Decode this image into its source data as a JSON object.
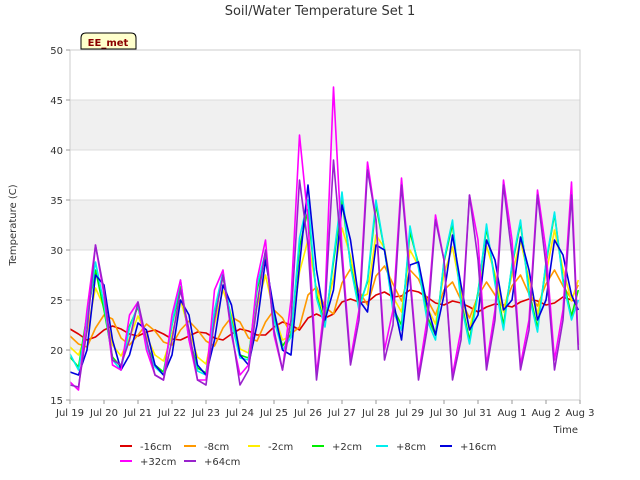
{
  "chart_data": {
    "type": "line",
    "title": "Soil/Water Temperature Set 1",
    "xlabel": "Time",
    "ylabel": "Temperature (C)",
    "badge": "EE_met",
    "ylim": [
      15,
      50
    ],
    "yticks": [
      15,
      20,
      25,
      30,
      35,
      40,
      45,
      50
    ],
    "xlim": [
      "2024-07-19",
      "2024-08-03"
    ],
    "xticks": [
      "Jul 19",
      "Jul 20",
      "Jul 21",
      "Jul 22",
      "Jul 23",
      "Jul 24",
      "Jul 25",
      "Jul 26",
      "Jul 27",
      "Jul 28",
      "Jul 29",
      "Jul 30",
      "Jul 31",
      "Aug 1",
      "Aug 2",
      "Aug 3"
    ],
    "grid": true,
    "shaded_bands": [
      [
        20,
        25
      ],
      [
        30,
        35
      ],
      [
        40,
        45
      ]
    ],
    "legend_position": "bottom",
    "series": [
      {
        "name": "-16cm",
        "color": "#dd0000",
        "days": [
          0.0,
          0.25,
          0.5,
          0.75,
          1.0,
          1.25,
          1.5,
          1.75,
          2.0,
          2.25,
          2.5,
          2.75,
          3.0,
          3.25,
          3.5,
          3.75,
          4.0,
          4.25,
          4.5,
          4.75,
          5.0,
          5.25,
          5.5,
          5.75,
          6.0,
          6.25,
          6.5,
          6.75,
          7.0,
          7.25,
          7.5,
          7.75,
          8.0,
          8.25,
          8.5,
          8.75,
          9.0,
          9.25,
          9.5,
          9.75,
          10.0,
          10.25,
          10.5,
          10.75,
          11.0,
          11.25,
          11.5,
          11.75,
          12.0,
          12.25,
          12.5,
          12.75,
          13.0,
          13.25,
          13.5,
          13.75,
          14.0,
          14.25,
          14.5,
          14.75,
          14.95
        ],
        "values": [
          22.1,
          21.6,
          21.0,
          21.3,
          22.0,
          22.4,
          22.1,
          21.6,
          21.4,
          21.8,
          22.0,
          21.6,
          21.1,
          21.0,
          21.4,
          21.8,
          21.7,
          21.2,
          21.0,
          21.6,
          22.1,
          21.9,
          21.5,
          21.5,
          22.3,
          22.8,
          22.5,
          22.0,
          23.2,
          23.6,
          23.2,
          23.6,
          24.8,
          25.1,
          24.8,
          24.8,
          25.5,
          25.8,
          25.3,
          25.4,
          26.0,
          25.8,
          25.3,
          24.7,
          24.5,
          24.9,
          24.7,
          24.3,
          23.8,
          24.3,
          24.6,
          24.5,
          24.3,
          24.8,
          25.1,
          24.9,
          24.5,
          24.7,
          25.3,
          25.0,
          24.8
        ]
      },
      {
        "name": "-8cm",
        "color": "#ff9900",
        "days": [
          0.0,
          0.25,
          0.5,
          0.75,
          1.0,
          1.25,
          1.5,
          1.75,
          2.0,
          2.25,
          2.5,
          2.75,
          3.0,
          3.25,
          3.5,
          3.75,
          4.0,
          4.25,
          4.5,
          4.75,
          5.0,
          5.25,
          5.5,
          5.75,
          6.0,
          6.25,
          6.5,
          6.75,
          7.0,
          7.25,
          7.5,
          7.75,
          8.0,
          8.25,
          8.5,
          8.75,
          9.0,
          9.25,
          9.5,
          9.75,
          10.0,
          10.25,
          10.5,
          10.75,
          11.0,
          11.25,
          11.5,
          11.75,
          12.0,
          12.25,
          12.5,
          12.75,
          13.0,
          13.25,
          13.5,
          13.75,
          14.0,
          14.25,
          14.5,
          14.75,
          14.95
        ],
        "values": [
          21.4,
          20.6,
          20.3,
          22.2,
          23.5,
          23.1,
          21.2,
          20.5,
          21.5,
          22.6,
          21.9,
          20.8,
          20.5,
          22.0,
          22.9,
          22.0,
          20.9,
          20.4,
          22.2,
          23.3,
          22.8,
          21.2,
          20.9,
          22.8,
          24.0,
          23.2,
          21.6,
          22.3,
          25.5,
          26.3,
          24.3,
          23.6,
          26.7,
          28.1,
          25.9,
          24.5,
          27.4,
          28.4,
          26.6,
          24.9,
          28.0,
          27.1,
          25.1,
          23.5,
          26.0,
          26.8,
          25.0,
          23.2,
          25.4,
          26.8,
          25.5,
          24.2,
          26.4,
          27.5,
          25.6,
          24.4,
          26.6,
          28.0,
          26.4,
          25.1,
          26.5
        ]
      },
      {
        "name": "-2cm",
        "color": "#ffee00",
        "days": [
          0.0,
          0.25,
          0.5,
          0.75,
          1.0,
          1.25,
          1.5,
          1.75,
          2.0,
          2.25,
          2.5,
          2.75,
          3.0,
          3.25,
          3.5,
          3.75,
          4.0,
          4.25,
          4.5,
          4.75,
          5.0,
          5.25,
          5.5,
          5.75,
          6.0,
          6.25,
          6.5,
          6.75,
          7.0,
          7.25,
          7.5,
          7.75,
          8.0,
          8.25,
          8.5,
          8.75,
          9.0,
          9.25,
          9.5,
          9.75,
          10.0,
          10.25,
          10.5,
          10.75,
          11.0,
          11.25,
          11.5,
          11.75,
          12.0,
          12.25,
          12.5,
          12.75,
          13.0,
          13.25,
          13.5,
          13.75,
          14.0,
          14.25,
          14.5,
          14.75,
          14.95
        ],
        "values": [
          20.3,
          19.5,
          21.8,
          26.2,
          24.3,
          20.5,
          19.4,
          21.2,
          23.4,
          21.4,
          19.5,
          18.9,
          21.5,
          25.0,
          22.0,
          19.3,
          18.6,
          22.6,
          26.0,
          23.5,
          20.1,
          19.7,
          24.3,
          27.5,
          23.6,
          21.0,
          21.4,
          27.8,
          31.0,
          26.0,
          23.3,
          27.2,
          32.2,
          29.4,
          25.2,
          25.6,
          31.5,
          30.2,
          25.3,
          23.8,
          30.0,
          28.4,
          24.3,
          22.6,
          27.6,
          30.3,
          25.8,
          22.1,
          25.6,
          30.4,
          27.6,
          23.8,
          27.5,
          31.0,
          27.0,
          23.6,
          27.6,
          32.0,
          28.1,
          24.9,
          27.0
        ]
      },
      {
        "name": "+2cm",
        "color": "#00ee00",
        "days": [
          0.0,
          0.25,
          0.5,
          0.75,
          1.0,
          1.25,
          1.5,
          1.75,
          2.0,
          2.25,
          2.5,
          2.75,
          3.0,
          3.25,
          3.5,
          3.75,
          4.0,
          4.25,
          4.5,
          4.75,
          5.0,
          5.25,
          5.5,
          5.75,
          6.0,
          6.25,
          6.5,
          6.75,
          7.0,
          7.25,
          7.5,
          7.75,
          8.0,
          8.25,
          8.5,
          8.75,
          9.0,
          9.25,
          9.5,
          9.75,
          10.0,
          10.25,
          10.5,
          10.75,
          11.0,
          11.25,
          11.5,
          11.75,
          12.0,
          12.25,
          12.5,
          12.75,
          13.0,
          13.25,
          13.5,
          13.75,
          14.0,
          14.25,
          14.5,
          14.75,
          14.95
        ],
        "values": [
          19.3,
          18.3,
          23.5,
          28.0,
          24.0,
          19.3,
          18.3,
          22.4,
          24.3,
          20.6,
          18.5,
          17.8,
          22.5,
          26.3,
          21.3,
          18.2,
          17.7,
          23.8,
          27.3,
          23.0,
          19.5,
          19.2,
          26.0,
          29.5,
          23.3,
          20.4,
          21.6,
          30.3,
          34.0,
          25.5,
          22.6,
          28.8,
          35.0,
          28.6,
          24.4,
          26.8,
          34.5,
          30.0,
          24.2,
          22.5,
          31.8,
          28.6,
          23.4,
          21.5,
          28.8,
          32.6,
          25.0,
          21.0,
          25.8,
          32.2,
          27.0,
          22.5,
          28.4,
          32.7,
          25.9,
          22.2,
          28.6,
          33.6,
          27.1,
          23.4,
          26.0
        ]
      },
      {
        "name": "+8cm",
        "color": "#00eeee",
        "days": [
          0.0,
          0.25,
          0.5,
          0.75,
          1.0,
          1.25,
          1.5,
          1.75,
          2.0,
          2.25,
          2.5,
          2.75,
          3.0,
          3.25,
          3.5,
          3.75,
          4.0,
          4.25,
          4.5,
          4.75,
          5.0,
          5.25,
          5.5,
          5.75,
          6.0,
          6.25,
          6.5,
          6.75,
          7.0,
          7.25,
          7.5,
          7.75,
          8.0,
          8.25,
          8.5,
          8.75,
          9.0,
          9.25,
          9.5,
          9.75,
          10.0,
          10.25,
          10.5,
          10.75,
          11.0,
          11.25,
          11.5,
          11.75,
          12.0,
          12.25,
          12.5,
          12.75,
          13.0,
          13.25,
          13.5,
          13.75,
          14.0,
          14.25,
          14.5,
          14.75,
          14.95
        ],
        "values": [
          19.6,
          18.0,
          23.0,
          28.8,
          24.6,
          19.0,
          18.0,
          22.2,
          24.5,
          20.4,
          18.3,
          17.5,
          22.6,
          27.0,
          21.0,
          17.9,
          17.5,
          24.0,
          27.8,
          22.8,
          19.2,
          19.0,
          26.4,
          29.8,
          23.0,
          20.0,
          21.3,
          31.2,
          35.0,
          25.2,
          22.3,
          29.2,
          35.8,
          28.4,
          24.0,
          27.0,
          35.0,
          30.0,
          23.9,
          22.0,
          32.4,
          28.2,
          23.0,
          21.0,
          29.0,
          33.0,
          24.6,
          20.6,
          25.6,
          32.6,
          26.6,
          22.0,
          28.6,
          33.0,
          25.5,
          21.8,
          28.8,
          33.8,
          26.8,
          23.0,
          25.0
        ]
      },
      {
        "name": "+16cm",
        "color": "#0000dd",
        "days": [
          0.0,
          0.25,
          0.5,
          0.75,
          1.0,
          1.25,
          1.5,
          1.75,
          2.0,
          2.25,
          2.5,
          2.75,
          3.0,
          3.25,
          3.5,
          3.75,
          4.0,
          4.25,
          4.5,
          4.75,
          5.0,
          5.25,
          5.5,
          5.75,
          6.0,
          6.25,
          6.5,
          6.75,
          7.0,
          7.25,
          7.5,
          7.75,
          8.0,
          8.25,
          8.5,
          8.75,
          9.0,
          9.25,
          9.5,
          9.75,
          10.0,
          10.25,
          10.5,
          10.75,
          11.0,
          11.25,
          11.5,
          11.75,
          12.0,
          12.25,
          12.5,
          12.75,
          13.0,
          13.25,
          13.5,
          13.75,
          14.0,
          14.25,
          14.5,
          14.75,
          14.95
        ],
        "values": [
          17.8,
          17.5,
          20.0,
          27.5,
          26.5,
          21.0,
          18.0,
          19.5,
          22.7,
          22.0,
          18.5,
          17.5,
          19.5,
          25.0,
          23.5,
          18.5,
          17.5,
          21.0,
          26.5,
          24.5,
          19.5,
          18.5,
          22.5,
          29.0,
          24.0,
          20.0,
          19.5,
          28.5,
          36.5,
          28.0,
          23.0,
          26.0,
          34.5,
          31.0,
          25.0,
          23.8,
          30.5,
          30.0,
          25.0,
          21.0,
          28.5,
          28.8,
          24.5,
          21.5,
          25.5,
          31.5,
          26.5,
          22.0,
          23.5,
          31.0,
          29.0,
          24.0,
          25.0,
          31.3,
          28.0,
          23.0,
          25.0,
          31.0,
          29.5,
          25.5,
          24.0
        ]
      },
      {
        "name": "+32cm",
        "color": "#ff00ff",
        "days": [
          0.0,
          0.25,
          0.5,
          0.75,
          1.0,
          1.25,
          1.5,
          1.75,
          2.0,
          2.25,
          2.5,
          2.75,
          3.0,
          3.25,
          3.5,
          3.75,
          4.0,
          4.25,
          4.5,
          4.75,
          5.0,
          5.25,
          5.5,
          5.75,
          6.0,
          6.25,
          6.5,
          6.75,
          7.0,
          7.25,
          7.5,
          7.75,
          8.0,
          8.25,
          8.5,
          8.75,
          9.0,
          9.25,
          9.5,
          9.75,
          10.0,
          10.25,
          10.5,
          10.75,
          11.0,
          11.25,
          11.5,
          11.75,
          12.0,
          12.25,
          12.5,
          12.75,
          13.0,
          13.25,
          13.5,
          13.75,
          14.0,
          14.25,
          14.5,
          14.75,
          14.95
        ],
        "values": [
          16.8,
          16.0,
          24.0,
          30.5,
          25.5,
          18.5,
          18.0,
          23.5,
          24.8,
          20.0,
          17.5,
          17.0,
          23.5,
          27.0,
          21.0,
          17.0,
          17.0,
          26.0,
          28.0,
          21.5,
          17.5,
          18.5,
          27.0,
          31.0,
          21.5,
          18.0,
          25.0,
          41.5,
          33.0,
          17.5,
          25.0,
          46.3,
          30.0,
          19.0,
          24.0,
          38.8,
          33.0,
          20.0,
          24.0,
          37.2,
          27.5,
          17.5,
          23.0,
          33.5,
          29.0,
          17.5,
          22.0,
          35.5,
          31.0,
          18.5,
          24.0,
          37.0,
          31.0,
          18.5,
          23.0,
          36.0,
          30.0,
          19.0,
          24.0,
          36.8,
          20.5
        ]
      },
      {
        "name": "+64cm",
        "color": "#9922cc",
        "days": [
          0.0,
          0.25,
          0.5,
          0.75,
          1.0,
          1.25,
          1.5,
          1.75,
          2.0,
          2.25,
          2.5,
          2.75,
          3.0,
          3.25,
          3.5,
          3.75,
          4.0,
          4.25,
          4.5,
          4.75,
          5.0,
          5.25,
          5.5,
          5.75,
          6.0,
          6.25,
          6.5,
          6.75,
          7.0,
          7.25,
          7.5,
          7.75,
          8.0,
          8.25,
          8.5,
          8.75,
          9.0,
          9.25,
          9.5,
          9.75,
          10.0,
          10.25,
          10.5,
          10.75,
          11.0,
          11.25,
          11.5,
          11.75,
          12.0,
          12.25,
          12.5,
          12.75,
          13.0,
          13.25,
          13.5,
          13.75,
          14.0,
          14.25,
          14.5,
          14.75,
          14.95
        ],
        "values": [
          16.5,
          16.3,
          22.0,
          30.5,
          26.0,
          19.0,
          18.5,
          21.0,
          24.8,
          21.0,
          17.5,
          17.0,
          21.0,
          26.0,
          22.0,
          17.0,
          16.5,
          23.0,
          27.5,
          22.0,
          16.5,
          18.0,
          24.5,
          30.0,
          22.0,
          18.0,
          23.0,
          37.0,
          30.5,
          17.0,
          24.0,
          39.0,
          29.0,
          18.5,
          23.0,
          38.0,
          33.0,
          19.0,
          22.5,
          36.5,
          27.0,
          17.0,
          22.0,
          33.0,
          29.0,
          17.0,
          21.0,
          35.5,
          29.0,
          18.0,
          23.0,
          36.5,
          29.5,
          18.0,
          22.0,
          35.5,
          28.5,
          18.0,
          23.0,
          35.5,
          20.0
        ]
      }
    ]
  }
}
